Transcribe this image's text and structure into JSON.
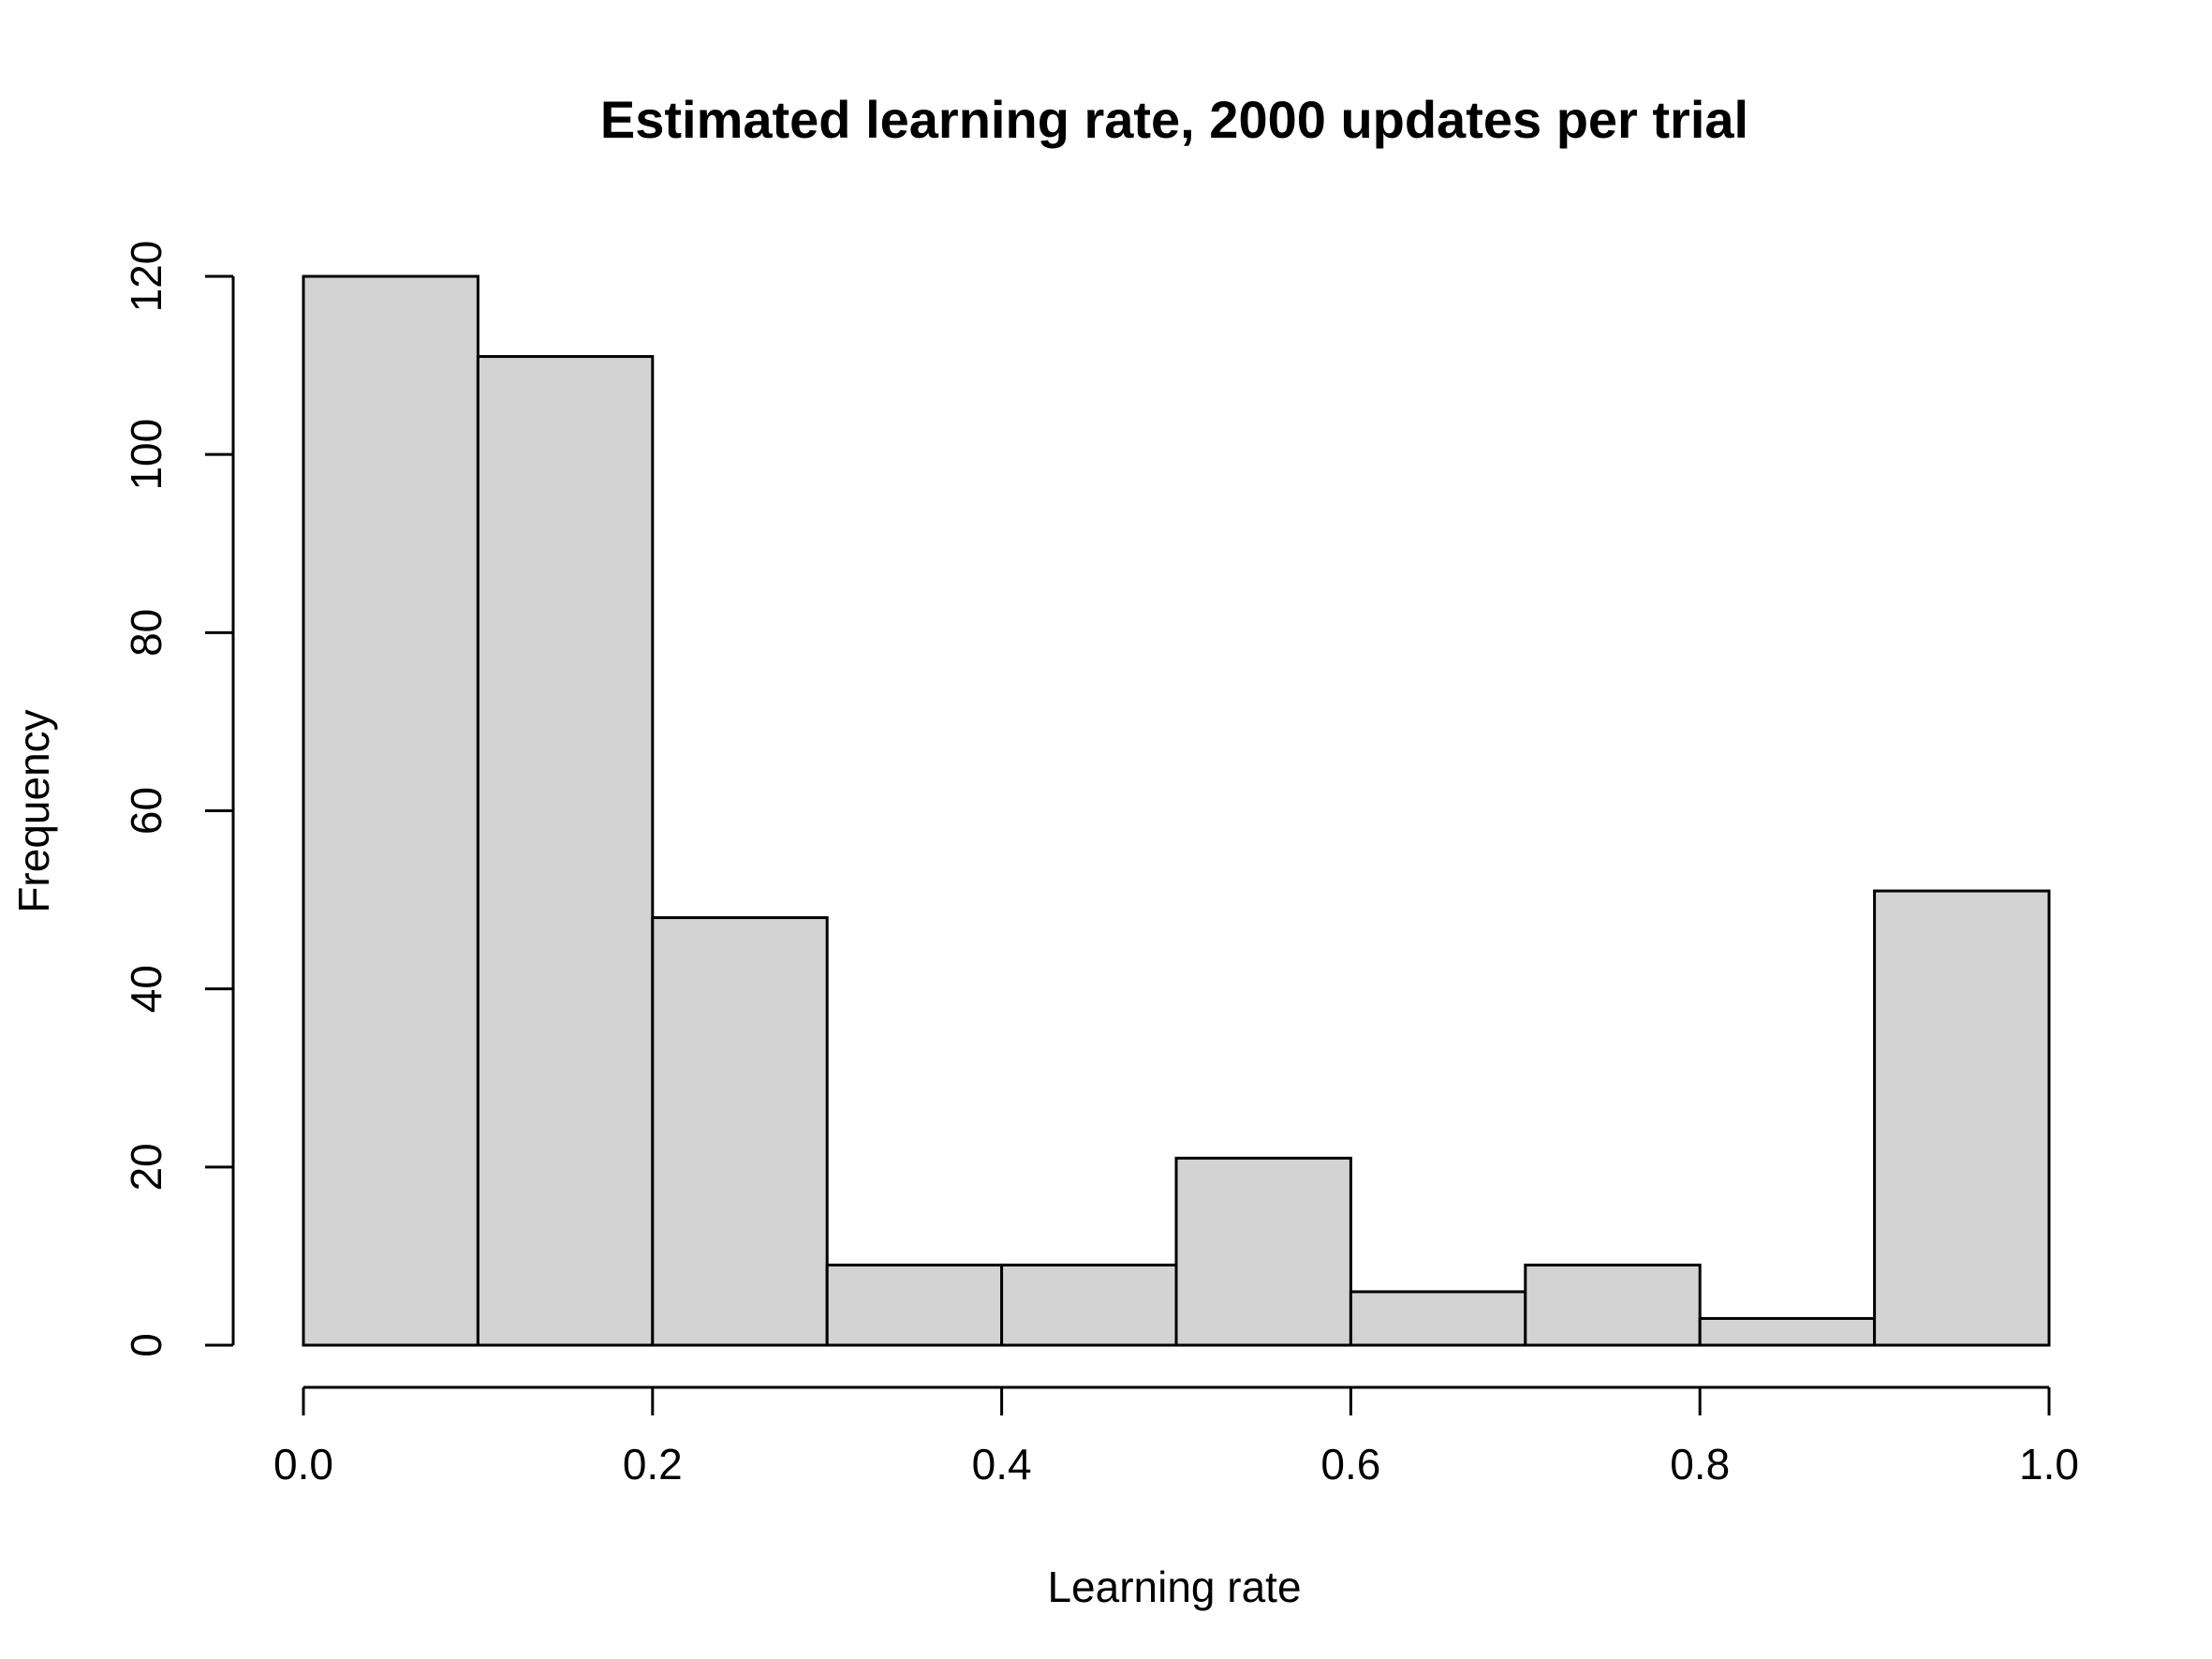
{
  "chart_data": {
    "type": "histogram",
    "title": "Estimated learning rate, 2000 updates per trial",
    "xlabel": "Learning rate",
    "ylabel": "Frequency",
    "bins": [
      {
        "x0": 0.0,
        "x1": 0.1,
        "count": 120
      },
      {
        "x0": 0.1,
        "x1": 0.2,
        "count": 111
      },
      {
        "x0": 0.2,
        "x1": 0.3,
        "count": 48
      },
      {
        "x0": 0.3,
        "x1": 0.4,
        "count": 9
      },
      {
        "x0": 0.4,
        "x1": 0.5,
        "count": 9
      },
      {
        "x0": 0.5,
        "x1": 0.6,
        "count": 21
      },
      {
        "x0": 0.6,
        "x1": 0.7,
        "count": 6
      },
      {
        "x0": 0.7,
        "x1": 0.8,
        "count": 9
      },
      {
        "x0": 0.8,
        "x1": 0.9,
        "count": 3
      },
      {
        "x0": 0.9,
        "x1": 1.0,
        "count": 51
      }
    ],
    "xlim": [
      0.0,
      1.0
    ],
    "ylim": [
      0,
      120
    ],
    "x_ticks": [
      {
        "value": 0.0,
        "label": "0.0"
      },
      {
        "value": 0.2,
        "label": "0.2"
      },
      {
        "value": 0.4,
        "label": "0.4"
      },
      {
        "value": 0.6,
        "label": "0.6"
      },
      {
        "value": 0.8,
        "label": "0.8"
      },
      {
        "value": 1.0,
        "label": "1.0"
      }
    ],
    "y_ticks": [
      {
        "value": 0,
        "label": "0"
      },
      {
        "value": 20,
        "label": "20"
      },
      {
        "value": 40,
        "label": "40"
      },
      {
        "value": 60,
        "label": "60"
      },
      {
        "value": 80,
        "label": "80"
      },
      {
        "value": 100,
        "label": "100"
      },
      {
        "value": 120,
        "label": "120"
      }
    ],
    "grid": false,
    "colors": {
      "bar_fill": "#d3d3d3",
      "bar_stroke": "#000000",
      "axis": "#000000"
    }
  }
}
